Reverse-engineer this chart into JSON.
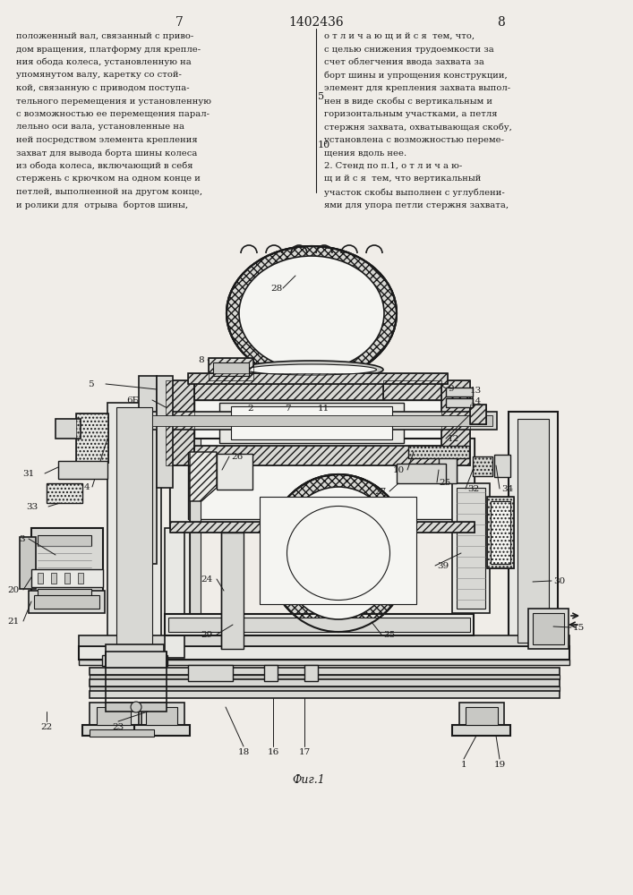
{
  "bg_color": "#f0ede8",
  "lc": "#1a1a1a",
  "lw": 1.0,
  "text_left": [
    "положенный вал, связанный с приво-",
    "дом вращения, платформу для крепле-",
    "ния обода колеса, установленную на",
    "упомянутом валу, каретку со стой-",
    "кой, связанную с приводом поступа-",
    "тельного перемещения и установленную",
    "с возможностью ее перемещения парал-",
    "лельно оси вала, установленные на",
    "ней посредством элемента крепления",
    "захват для вывода борта шины колеса",
    "из обода колеса, включающий в себя",
    "стержень с крючком на одном конце и",
    "петлей, выполненной на другом конце,",
    "и ролики для  отрыва  бортов шины,"
  ],
  "text_right": [
    "о т л и ч а ю щ и й с я  тем, что,",
    "с целью снижения трудоемкости за",
    "счет облегчения ввода захвата за",
    "борт шины и упрощения конструкции,",
    "элемент для крепления захвата выпол-",
    "нен в виде скобы с вертикальным и",
    "горизонтальным участками, а петля",
    "стержня захвата, охватывающая скобу,",
    "установлена с возможностью переме-",
    "щения вдоль нее.",
    "2. Стенд по п.1, о т л и ч а ю-",
    "щ и й с я  тем, что вертикальный",
    "участок скобы выполнен с углублени-",
    "ями для упора петли стержня захвата,"
  ],
  "gray1": "#e8e8e4",
  "gray2": "#d8d8d4",
  "gray3": "#c8c8c4",
  "white": "#f5f5f2"
}
